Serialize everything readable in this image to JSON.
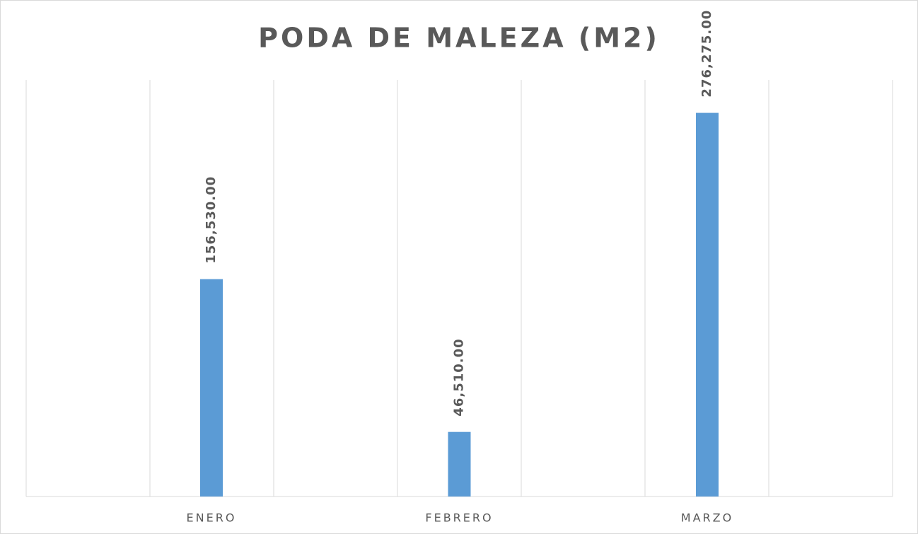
{
  "chart_data": {
    "type": "bar",
    "title": "PODA DE MALEZA (M2)",
    "categories": [
      "ENERO",
      "FEBRERO",
      "MARZO"
    ],
    "values": [
      156530,
      46510,
      276275
    ],
    "value_labels": [
      "156,530.00",
      "46,510.00",
      "276,275.00"
    ],
    "color": "#5b9bd5",
    "ylim": [
      0,
      300000
    ]
  }
}
